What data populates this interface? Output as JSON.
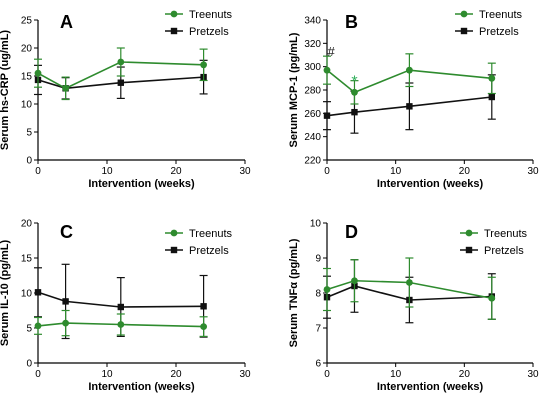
{
  "colors": {
    "treenuts": "#2e8b2e",
    "pretzels": "#111111",
    "annotation_star": "#2fae5a"
  },
  "chart_data": [
    {
      "type": "line",
      "panel_letter": "A",
      "xlabel": "Intervention (weeks)",
      "ylabel": "Serum hs-CRP (ug/mL)",
      "xlim": [
        0,
        30
      ],
      "ylim": [
        0,
        25
      ],
      "xticks": [
        0,
        10,
        20,
        30
      ],
      "yticks": [
        0,
        5,
        10,
        15,
        20,
        25
      ],
      "legend": "top-right",
      "series": [
        {
          "name": "Treenuts",
          "x": [
            0,
            4,
            12,
            24
          ],
          "y": [
            15.5,
            12.8,
            17.5,
            17.0
          ],
          "err": [
            2.5,
            2.0,
            2.5,
            2.8
          ]
        },
        {
          "name": "Pretzels",
          "x": [
            0,
            4,
            12,
            24
          ],
          "y": [
            14.3,
            12.8,
            13.8,
            14.8
          ],
          "err": [
            2.6,
            1.9,
            2.8,
            3.0
          ]
        }
      ],
      "annotations": []
    },
    {
      "type": "line",
      "panel_letter": "B",
      "xlabel": "Intervention (weeks)",
      "ylabel": "Serum MCP-1 (pg/mL)",
      "xlim": [
        0,
        30
      ],
      "ylim": [
        220,
        340
      ],
      "xticks": [
        0,
        10,
        20,
        30
      ],
      "yticks": [
        220,
        240,
        260,
        280,
        300,
        320,
        340
      ],
      "legend": "top-right",
      "series": [
        {
          "name": "Treenuts",
          "x": [
            0,
            4,
            12,
            24
          ],
          "y": [
            297,
            278,
            297,
            290
          ],
          "err": [
            12,
            10,
            14,
            13
          ]
        },
        {
          "name": "Pretzels",
          "x": [
            0,
            4,
            12,
            24
          ],
          "y": [
            258,
            261,
            266,
            274
          ],
          "err": [
            12,
            18,
            20,
            19
          ]
        }
      ],
      "annotations": [
        {
          "text": "#",
          "x": 0.6,
          "y": 309,
          "color": "pretzels"
        },
        {
          "text": "*",
          "x": 4,
          "y": 283,
          "color": "annotation_star"
        }
      ]
    },
    {
      "type": "line",
      "panel_letter": "C",
      "xlabel": "Intervention (weeks)",
      "ylabel": "Serum IL-10 (pg/mL)",
      "xlim": [
        0,
        30
      ],
      "ylim": [
        0,
        20
      ],
      "xticks": [
        0,
        10,
        20,
        30
      ],
      "yticks": [
        0,
        5,
        10,
        15,
        20
      ],
      "legend": "top-right",
      "series": [
        {
          "name": "Treenuts",
          "x": [
            0,
            4,
            12,
            24
          ],
          "y": [
            5.3,
            5.7,
            5.5,
            5.2
          ],
          "err": [
            1.2,
            1.8,
            1.5,
            1.4
          ]
        },
        {
          "name": "Pretzels",
          "x": [
            0,
            4,
            12,
            24
          ],
          "y": [
            10.1,
            8.8,
            8.0,
            8.1
          ],
          "err": [
            3.5,
            5.3,
            4.2,
            4.4
          ]
        }
      ],
      "annotations": []
    },
    {
      "type": "line",
      "panel_letter": "D",
      "xlabel": "Intervention (weeks)",
      "ylabel": "Serum TNFα (pg/mL)",
      "xlim": [
        0,
        30
      ],
      "ylim": [
        6,
        10
      ],
      "xticks": [
        0,
        10,
        20,
        30
      ],
      "yticks": [
        6,
        7,
        8,
        9,
        10
      ],
      "legend": "top-right",
      "series": [
        {
          "name": "Treenuts",
          "x": [
            0,
            4,
            12,
            24
          ],
          "y": [
            8.1,
            8.35,
            8.3,
            7.85
          ],
          "err": [
            0.6,
            0.6,
            0.7,
            0.6
          ]
        },
        {
          "name": "Pretzels",
          "x": [
            0,
            4,
            12,
            24
          ],
          "y": [
            7.88,
            8.2,
            7.8,
            7.9
          ],
          "err": [
            0.6,
            0.75,
            0.65,
            0.65
          ]
        }
      ],
      "annotations": []
    }
  ]
}
